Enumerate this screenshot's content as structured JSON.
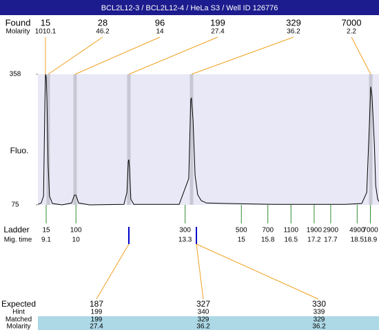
{
  "header": {
    "title": "BCL2L12-3 / BCL2L12-4 / HeLa S3 / Well ID 126776"
  },
  "found": {
    "label": "Found",
    "molarity_label": "Molarity",
    "sizes": [
      15,
      28,
      96,
      199,
      329,
      7000
    ],
    "molarity": [
      1010.1,
      46.2,
      14,
      27.4,
      36.2,
      2.2
    ]
  },
  "chart_data": {
    "type": "line",
    "y_label": "Fluo.",
    "color": "#000000",
    "x": [
      8.85,
      8.95,
      9.02,
      9.06,
      9.08,
      9.1,
      9.12,
      9.16,
      9.2,
      9.29,
      9.58,
      9.87,
      9.95,
      10.0,
      10.08,
      10.41,
      11.45,
      11.54,
      11.58,
      11.6,
      11.62,
      11.66,
      11.75,
      13.12,
      13.41,
      13.47,
      13.49,
      13.54,
      13.6,
      13.68,
      13.79,
      13.95,
      14.58,
      16.04,
      18.12,
      18.64,
      18.79,
      18.87,
      18.91,
      18.95,
      19.02,
      19.06,
      19.12,
      19.16
    ],
    "values": [
      76,
      79,
      94,
      295,
      358,
      352,
      310,
      161,
      94,
      78,
      75,
      79,
      96,
      96,
      79,
      75,
      76,
      102,
      169,
      173,
      154,
      87,
      76,
      76,
      132,
      303,
      306,
      258,
      139,
      97,
      84,
      79,
      78,
      76,
      76,
      78,
      102,
      251,
      331,
      310,
      206,
      117,
      87,
      82
    ],
    "xlim": [
      8.85,
      19.16
    ],
    "ylim": [
      75,
      358
    ],
    "yticks": [
      75,
      358
    ]
  },
  "ladder": {
    "label": "Ladder",
    "time_label": "Mig. time",
    "sizes": [
      15,
      100,
      300,
      500,
      700,
      1100,
      1900,
      2900,
      4900,
      7000
    ],
    "mig_times": [
      9.1,
      10,
      13.3,
      15,
      15.8,
      16.5,
      17.2,
      17.7,
      18.5,
      18.9
    ]
  },
  "expected": {
    "label": "Expected",
    "hint_label": "Hint",
    "matched_label": "Matched",
    "molarity_label": "Molarity",
    "expected": [
      187,
      327,
      330
    ],
    "hint": [
      199,
      340,
      339
    ],
    "matched": [
      199,
      329,
      329
    ],
    "molarity": [
      27.4,
      36.2,
      36.2
    ]
  }
}
